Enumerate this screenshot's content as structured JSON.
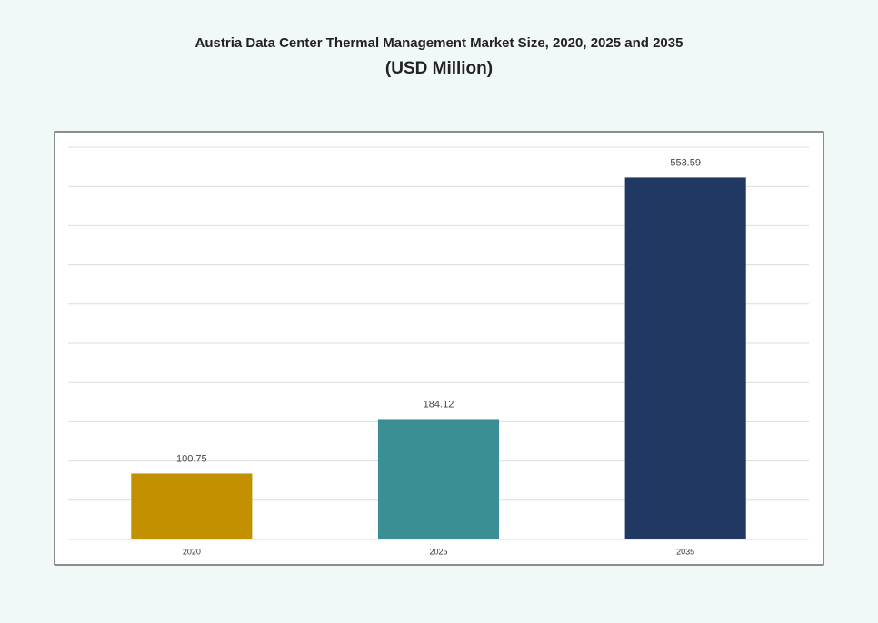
{
  "chart_data": {
    "type": "bar",
    "title": "Austria Data Center Thermal Management Market Size, 2020, 2025 and 2035",
    "subtitle": "(USD Million)",
    "categories": [
      "2020",
      "2025",
      "2035"
    ],
    "values": [
      100.75,
      184.12,
      553.59
    ],
    "value_labels": [
      "100.75",
      "184.12",
      "553.59"
    ],
    "colors": [
      "#c39100",
      "#3b8f94",
      "#213962"
    ],
    "ylim": [
      0,
      600
    ],
    "yticks": [
      0,
      60,
      120,
      180,
      240,
      300,
      360,
      420,
      480,
      540,
      600
    ],
    "grid": true
  }
}
